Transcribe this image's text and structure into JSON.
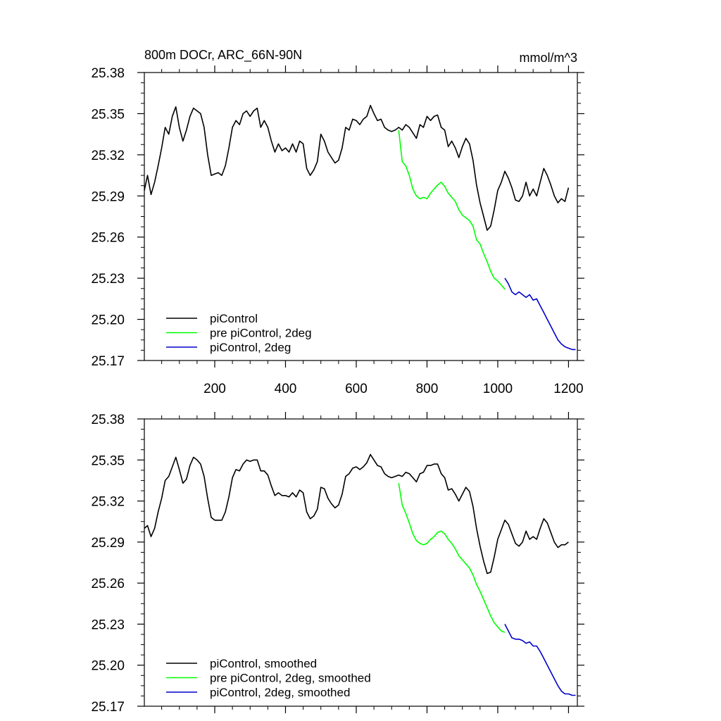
{
  "figure": {
    "title_left": "800m DOCr, ARC_66N-90N",
    "title_right": "mmol/m^3"
  },
  "chart_data": [
    {
      "type": "line",
      "title": "800m DOCr, ARC_66N-90N",
      "units": "mmol/m^3",
      "xlim": [
        1,
        1225
      ],
      "ylim": [
        25.17,
        25.38
      ],
      "xticks": [
        200,
        400,
        600,
        800,
        1000,
        1200
      ],
      "xtick_labels": [
        "200",
        "400",
        "600",
        "800",
        "1000",
        "1200"
      ],
      "yticks": [
        25.17,
        25.2,
        25.23,
        25.26,
        25.29,
        25.32,
        25.35,
        25.38
      ],
      "ytick_labels": [
        "25.17",
        "25.20",
        "25.23",
        "25.26",
        "25.29",
        "25.32",
        "25.35",
        "25.38"
      ],
      "legend_position": "bottom-left",
      "series": [
        {
          "name": "piControl",
          "color": "#000000",
          "x": [
            1,
            10,
            20,
            30,
            40,
            50,
            60,
            70,
            80,
            90,
            100,
            110,
            120,
            130,
            140,
            150,
            160,
            170,
            180,
            190,
            200,
            210,
            220,
            230,
            240,
            250,
            260,
            270,
            280,
            290,
            300,
            310,
            320,
            330,
            340,
            350,
            360,
            370,
            380,
            390,
            400,
            410,
            420,
            430,
            440,
            450,
            460,
            470,
            480,
            490,
            500,
            510,
            520,
            530,
            540,
            550,
            560,
            570,
            580,
            590,
            600,
            610,
            620,
            630,
            640,
            650,
            660,
            670,
            680,
            690,
            700,
            710,
            720,
            730,
            740,
            750,
            760,
            770,
            780,
            790,
            800,
            810,
            820,
            830,
            840,
            850,
            860,
            870,
            880,
            890,
            900,
            910,
            920,
            930,
            940,
            950,
            960,
            970,
            980,
            990,
            1000,
            1010,
            1020,
            1030,
            1040,
            1050,
            1060,
            1070,
            1080,
            1090,
            1100,
            1110,
            1120,
            1130,
            1140,
            1150,
            1160,
            1170,
            1180,
            1190,
            1200
          ],
          "values": [
            25.294,
            25.305,
            25.291,
            25.3,
            25.312,
            25.325,
            25.34,
            25.335,
            25.348,
            25.355,
            25.34,
            25.33,
            25.338,
            25.348,
            25.354,
            25.352,
            25.35,
            25.34,
            25.32,
            25.305,
            25.306,
            25.307,
            25.305,
            25.312,
            25.325,
            25.34,
            25.345,
            25.342,
            25.35,
            25.352,
            25.348,
            25.352,
            25.354,
            25.34,
            25.345,
            25.34,
            25.33,
            25.322,
            25.328,
            25.323,
            25.325,
            25.322,
            25.328,
            25.322,
            25.33,
            25.328,
            25.31,
            25.305,
            25.309,
            25.315,
            25.335,
            25.33,
            25.322,
            25.318,
            25.314,
            25.316,
            25.325,
            25.34,
            25.338,
            25.346,
            25.345,
            25.342,
            25.346,
            25.348,
            25.356,
            25.35,
            25.345,
            25.346,
            25.34,
            25.338,
            25.337,
            25.338,
            25.34,
            25.338,
            25.342,
            25.34,
            25.336,
            25.332,
            25.342,
            25.34,
            25.348,
            25.345,
            25.348,
            25.349,
            25.34,
            25.338,
            25.326,
            25.33,
            25.325,
            25.318,
            25.326,
            25.332,
            25.328,
            25.316,
            25.298,
            25.285,
            25.275,
            25.265,
            25.268,
            25.28,
            25.294,
            25.3,
            25.308,
            25.303,
            25.296,
            25.287,
            25.286,
            25.29,
            25.3,
            25.29,
            25.295,
            25.29,
            25.3,
            25.31,
            25.305,
            25.298,
            25.29,
            25.285,
            25.288,
            25.286,
            25.296
          ]
        },
        {
          "name": "pre piControl, 2deg",
          "color": "#00ff00",
          "x": [
            720,
            730,
            740,
            750,
            760,
            770,
            780,
            790,
            800,
            810,
            820,
            830,
            840,
            850,
            860,
            870,
            880,
            890,
            900,
            910,
            920,
            930,
            940,
            950,
            960,
            970,
            980,
            990,
            1000,
            1010,
            1020
          ],
          "values": [
            25.338,
            25.315,
            25.312,
            25.305,
            25.295,
            25.29,
            25.288,
            25.289,
            25.288,
            25.292,
            25.295,
            25.298,
            25.3,
            25.297,
            25.292,
            25.289,
            25.286,
            25.28,
            25.276,
            25.274,
            25.272,
            25.268,
            25.258,
            25.255,
            25.248,
            25.242,
            25.235,
            25.23,
            25.228,
            25.225,
            25.222
          ]
        },
        {
          "name": "piControl, 2deg",
          "color": "#0000cc",
          "x": [
            1020,
            1030,
            1040,
            1050,
            1060,
            1070,
            1080,
            1090,
            1100,
            1110,
            1120,
            1130,
            1140,
            1150,
            1160,
            1170,
            1180,
            1190,
            1200,
            1210,
            1220
          ],
          "values": [
            25.23,
            25.226,
            25.22,
            25.218,
            25.22,
            25.218,
            25.216,
            25.218,
            25.214,
            25.215,
            25.21,
            25.205,
            25.2,
            25.195,
            25.19,
            25.185,
            25.182,
            25.18,
            25.179,
            25.178,
            25.178
          ]
        }
      ]
    },
    {
      "type": "line",
      "title": "",
      "xlim": [
        1,
        1225
      ],
      "ylim": [
        25.17,
        25.38
      ],
      "xticks": [
        200,
        400,
        600,
        800,
        1000,
        1200
      ],
      "yticks": [
        25.17,
        25.2,
        25.23,
        25.26,
        25.29,
        25.32,
        25.35,
        25.38
      ],
      "ytick_labels": [
        "25.17",
        "25.20",
        "25.23",
        "25.26",
        "25.29",
        "25.32",
        "25.35",
        "25.38"
      ],
      "legend_position": "bottom-left",
      "series": [
        {
          "name": "piControl, smoothed",
          "color": "#000000",
          "x": [
            1,
            10,
            20,
            30,
            40,
            50,
            60,
            70,
            80,
            90,
            100,
            110,
            120,
            130,
            140,
            150,
            160,
            170,
            180,
            190,
            200,
            210,
            220,
            230,
            240,
            250,
            260,
            270,
            280,
            290,
            300,
            310,
            320,
            330,
            340,
            350,
            360,
            370,
            380,
            390,
            400,
            410,
            420,
            430,
            440,
            450,
            460,
            470,
            480,
            490,
            500,
            510,
            520,
            530,
            540,
            550,
            560,
            570,
            580,
            590,
            600,
            610,
            620,
            630,
            640,
            650,
            660,
            670,
            680,
            690,
            700,
            710,
            720,
            730,
            740,
            750,
            760,
            770,
            780,
            790,
            800,
            810,
            820,
            830,
            840,
            850,
            860,
            870,
            880,
            890,
            900,
            910,
            920,
            930,
            940,
            950,
            960,
            970,
            980,
            990,
            1000,
            1010,
            1020,
            1030,
            1040,
            1050,
            1060,
            1070,
            1080,
            1090,
            1100,
            1110,
            1120,
            1130,
            1140,
            1150,
            1160,
            1170,
            1180,
            1190,
            1200
          ],
          "values": [
            25.3,
            25.302,
            25.294,
            25.3,
            25.312,
            25.322,
            25.335,
            25.338,
            25.345,
            25.352,
            25.343,
            25.333,
            25.336,
            25.346,
            25.352,
            25.35,
            25.347,
            25.338,
            25.322,
            25.308,
            25.306,
            25.306,
            25.306,
            25.312,
            25.323,
            25.337,
            25.343,
            25.342,
            25.347,
            25.35,
            25.349,
            25.35,
            25.35,
            25.342,
            25.342,
            25.339,
            25.331,
            25.324,
            25.326,
            25.324,
            25.324,
            25.323,
            25.326,
            25.323,
            25.328,
            25.326,
            25.312,
            25.307,
            25.309,
            25.314,
            25.33,
            25.329,
            25.322,
            25.318,
            25.315,
            25.317,
            25.325,
            25.338,
            25.34,
            25.344,
            25.345,
            25.343,
            25.345,
            25.348,
            25.354,
            25.35,
            25.346,
            25.345,
            25.34,
            25.338,
            25.337,
            25.338,
            25.339,
            25.338,
            25.341,
            25.34,
            25.337,
            25.334,
            25.34,
            25.341,
            25.346,
            25.346,
            25.347,
            25.347,
            25.34,
            25.337,
            25.328,
            25.329,
            25.325,
            25.32,
            25.325,
            25.33,
            25.327,
            25.316,
            25.3,
            25.287,
            25.276,
            25.267,
            25.268,
            25.279,
            25.292,
            25.299,
            25.306,
            25.303,
            25.296,
            25.289,
            25.287,
            25.29,
            25.298,
            25.292,
            25.294,
            25.292,
            25.3,
            25.307,
            25.304,
            25.297,
            25.29,
            25.286,
            25.288,
            25.288,
            25.29
          ]
        },
        {
          "name": "pre piControl, 2deg, smoothed",
          "color": "#00ff00",
          "x": [
            720,
            730,
            740,
            750,
            760,
            770,
            780,
            790,
            800,
            810,
            820,
            830,
            840,
            850,
            860,
            870,
            880,
            890,
            900,
            910,
            920,
            930,
            940,
            950,
            960,
            970,
            980,
            990,
            1000,
            1010,
            1020
          ],
          "values": [
            25.333,
            25.317,
            25.311,
            25.304,
            25.296,
            25.291,
            25.289,
            25.288,
            25.289,
            25.292,
            25.294,
            25.297,
            25.298,
            25.296,
            25.292,
            25.289,
            25.285,
            25.28,
            25.277,
            25.274,
            25.271,
            25.266,
            25.259,
            25.254,
            25.248,
            25.242,
            25.236,
            25.231,
            25.228,
            25.225,
            25.224
          ]
        },
        {
          "name": "piControl, 2deg, smoothed",
          "color": "#0000cc",
          "x": [
            1020,
            1030,
            1040,
            1050,
            1060,
            1070,
            1080,
            1090,
            1100,
            1110,
            1120,
            1130,
            1140,
            1150,
            1160,
            1170,
            1180,
            1190,
            1200,
            1210,
            1220
          ],
          "values": [
            25.23,
            25.225,
            25.22,
            25.219,
            25.219,
            25.218,
            25.216,
            25.217,
            25.214,
            25.214,
            25.21,
            25.205,
            25.2,
            25.195,
            25.19,
            25.185,
            25.181,
            25.179,
            25.179,
            25.178,
            25.178
          ]
        }
      ]
    }
  ]
}
